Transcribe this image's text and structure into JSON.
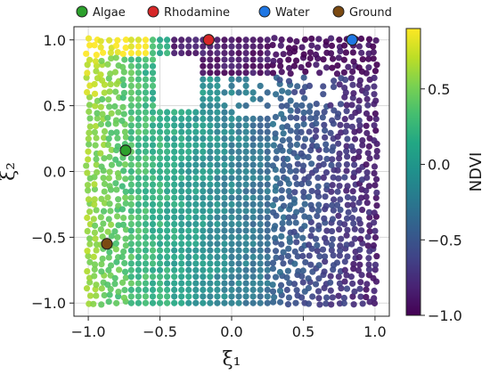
{
  "chart_data": {
    "type": "scatter",
    "title": "",
    "xlabel": "ξ₁",
    "ylabel": "ξ₂",
    "xlim": [
      -1.1,
      1.1
    ],
    "ylim": [
      -1.1,
      1.1
    ],
    "x_ticks": [
      -1.0,
      -0.5,
      0.0,
      0.5,
      1.0
    ],
    "y_ticks": [
      -1.0,
      -0.5,
      0.0,
      0.5,
      1.0
    ],
    "x_tick_labels": [
      "−1.0",
      "−0.5",
      "0.0",
      "0.5",
      "1.0"
    ],
    "y_tick_labels": [
      "−1.0",
      "−0.5",
      "0.0",
      "0.5",
      "1.0"
    ],
    "grid": true,
    "colorbar": {
      "label": "NDVI",
      "range": [
        -1.0,
        0.9
      ],
      "ticks": [
        0.5,
        0.0,
        -0.5,
        -1.0
      ],
      "tick_labels": [
        "0.5",
        "0.0",
        "−0.5",
        "−1.0"
      ],
      "colormap": "viridis"
    },
    "background_field": {
      "description_values": "NDVI over the (ξ₁, ξ₂) square, sampled on a grid",
      "x_range": [
        -1.0,
        1.0
      ],
      "y_range": [
        -1.0,
        1.0
      ],
      "left_value": 0.6,
      "right_value": -0.85,
      "top_right_value": -0.95,
      "top_left_max": 0.9
    },
    "legend": {
      "placement": "top",
      "entries": [
        {
          "name": "Algae",
          "color": "#2ca02c"
        },
        {
          "name": "Rhodamine",
          "color": "#d62728"
        },
        {
          "name": "Water",
          "color": "#1f77e4"
        },
        {
          "name": "Ground",
          "color": "#7b4a12"
        }
      ]
    },
    "reference_points": [
      {
        "name": "Algae",
        "x": -0.74,
        "y": 0.16,
        "color": "#2ca02c"
      },
      {
        "name": "Rhodamine",
        "x": -0.16,
        "y": 1.0,
        "color": "#d62728"
      },
      {
        "name": "Water",
        "x": 0.84,
        "y": 1.0,
        "color": "#1f77e4"
      },
      {
        "name": "Ground",
        "x": -0.87,
        "y": -0.55,
        "color": "#7b4a12"
      }
    ]
  }
}
